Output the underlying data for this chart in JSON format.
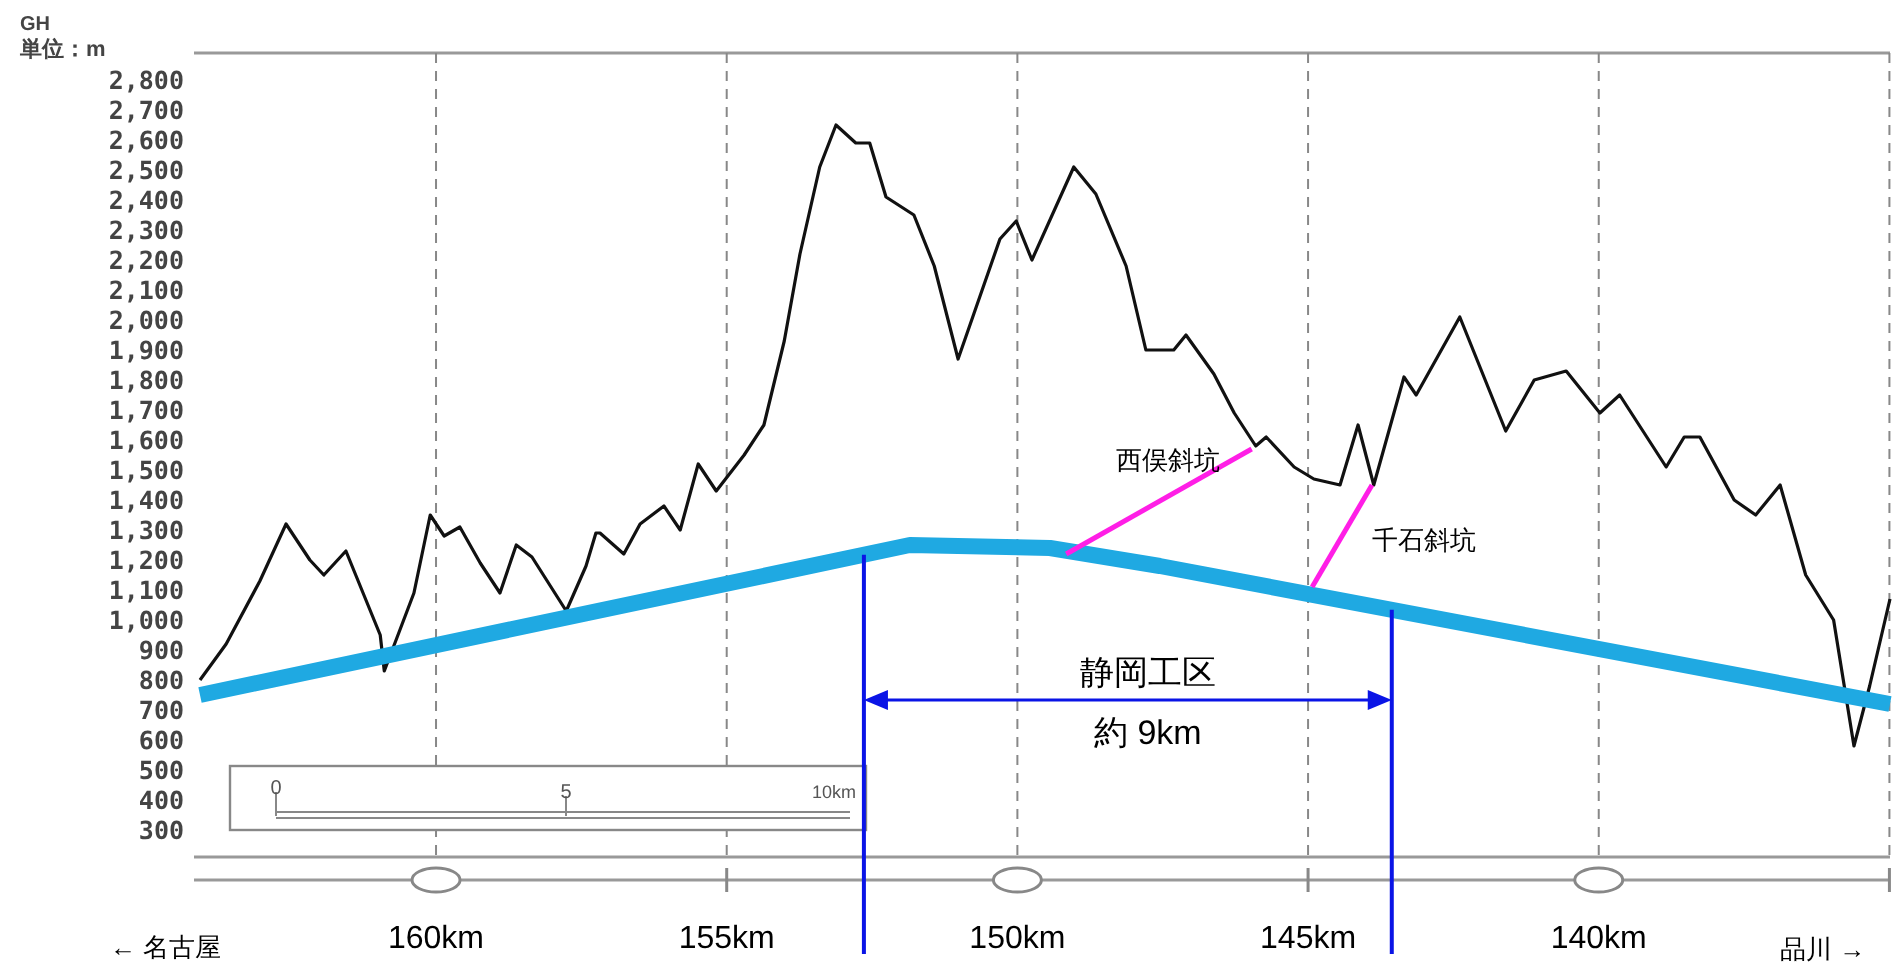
{
  "chart_data": {
    "type": "line",
    "ylabel": "単位：m",
    "annotations": [
      "GH",
      "静岡工区",
      "約 9km",
      "← 名古屋",
      "品川 →",
      "0",
      "5",
      "10km"
    ],
    "xlim": [
      164.06,
      134.99
    ],
    "xticks": [
      {
        "value": 160,
        "label": "160km"
      },
      {
        "value": 155,
        "label": "155km"
      },
      {
        "value": 150,
        "label": "150km"
      },
      {
        "value": 145,
        "label": "145km"
      },
      {
        "value": 140,
        "label": "140km"
      },
      {
        "value": 135,
        "label": null
      }
    ],
    "ylim": [
      210,
      2890
    ],
    "yticks": [
      300,
      400,
      500,
      600,
      700,
      800,
      900,
      {
        "value": 1000,
        "label": "1,000"
      },
      {
        "value": 1100,
        "label": "1,100"
      },
      {
        "value": 1200,
        "label": "1,200"
      },
      {
        "value": 1300,
        "label": "1,300"
      },
      {
        "value": 1400,
        "label": "1,400"
      },
      {
        "value": 1500,
        "label": "1,500"
      },
      {
        "value": 1600,
        "label": "1,600"
      },
      {
        "value": 1700,
        "label": "1,700"
      },
      {
        "value": 1800,
        "label": "1,800"
      },
      {
        "value": 1900,
        "label": "1,900"
      },
      {
        "value": 2000,
        "label": "2,000"
      },
      {
        "value": 2100,
        "label": "2,100"
      },
      {
        "value": 2200,
        "label": "2,200"
      },
      {
        "value": 2300,
        "label": "2,300"
      },
      {
        "value": 2400,
        "label": "2,400"
      },
      {
        "value": 2500,
        "label": "2,500"
      },
      {
        "value": 2600,
        "label": "2,600"
      },
      {
        "value": 2700,
        "label": "2,700"
      },
      {
        "value": 2800,
        "label": "2,800"
      }
    ],
    "grid": "x",
    "marker": "none",
    "ref_lines": [
      {
        "axis": "x",
        "value": 152.64,
        "color": "#0a14e6"
      },
      {
        "axis": "x",
        "value": 143.56,
        "color": "#0a14e6"
      }
    ],
    "series": [
      {
        "color": "#111111",
        "x": [
          164.06,
          163.61,
          163.03,
          162.58,
          162.17,
          161.93,
          161.55,
          160.96,
          160.89,
          160.38,
          160.1,
          159.86,
          159.59,
          159.24,
          158.9,
          158.62,
          158.35,
          157.76,
          157.42,
          157.25,
          157.18,
          156.77,
          156.49,
          156.08,
          155.8,
          155.49,
          155.18,
          154.7,
          154.36,
          154.01,
          153.74,
          153.4,
          153.12,
          152.78,
          152.54,
          152.26,
          151.78,
          151.43,
          151.02,
          150.75,
          150.3,
          150.02,
          149.75,
          149.03,
          148.65,
          148.13,
          147.79,
          147.31,
          147.1,
          146.62,
          146.27,
          145.9,
          145.72,
          145.24,
          144.9,
          144.45,
          144.14,
          143.87,
          143.35,
          143.14,
          142.39,
          141.6,
          141.11,
          140.56,
          139.98,
          139.64,
          138.84,
          138.53,
          138.26,
          137.67,
          137.3,
          136.88,
          136.44,
          135.96,
          135.61,
          135.34,
          134.99
        ],
        "values": [
          800,
          920,
          1130,
          1320,
          1200,
          1150,
          1230,
          950,
          830,
          1090,
          1350,
          1280,
          1310,
          1190,
          1090,
          1250,
          1210,
          1030,
          1180,
          1290,
          1290,
          1220,
          1320,
          1380,
          1300,
          1520,
          1430,
          1550,
          1650,
          1930,
          2220,
          2510,
          2650,
          2590,
          2590,
          2410,
          2350,
          2180,
          1870,
          2020,
          2270,
          2330,
          2200,
          2510,
          2420,
          2180,
          1900,
          1900,
          1950,
          1820,
          1690,
          1580,
          1610,
          1510,
          1470,
          1450,
          1650,
          1450,
          1810,
          1750,
          2010,
          1630,
          1800,
          1830,
          1690,
          1750,
          1510,
          1610,
          1610,
          1400,
          1350,
          1450,
          1150,
          1000,
          580,
          780,
          1070
        ]
      },
      {
        "color": "#1fa9e2",
        "x": [
          164.06,
          151.85,
          149.44,
          147.55,
          134.99
        ],
        "values": [
          750,
          1250,
          1240,
          1180,
          720
        ]
      },
      {
        "name": "西俣斜坑",
        "color": "#ff1ee6",
        "x": [
          149.16,
          145.97
        ],
        "values": [
          1220,
          1570
        ]
      },
      {
        "name": "千石斜坑",
        "color": "#ff1ee6",
        "x": [
          144.93,
          143.9
        ],
        "values": [
          1110,
          1450
        ]
      }
    ]
  }
}
